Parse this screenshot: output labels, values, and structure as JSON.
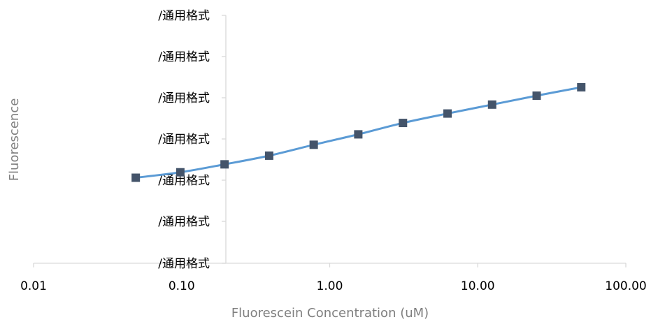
{
  "chart_data": {
    "type": "scatter",
    "title": "",
    "xlabel": "Fluorescein Concentration (uM)",
    "ylabel": "Fluorescence",
    "x_scale": "log",
    "xlim": [
      0.01,
      100
    ],
    "x_tick_labels": [
      "0.01",
      "0.10",
      "1.00",
      "10.00",
      "100.00"
    ],
    "x_tick_values": [
      0.01,
      0.1,
      1,
      10,
      100
    ],
    "y_tick_labels": [
      "/通用格式",
      "/通用格式",
      "/通用格式",
      "/通用格式",
      "/通用格式",
      "/通用格式",
      "/通用格式"
    ],
    "grid": false,
    "legend": "none",
    "series": [
      {
        "x": [
          0.049,
          0.098,
          0.195,
          0.39,
          0.78,
          1.56,
          3.125,
          6.25,
          12.5,
          25,
          50
        ],
        "y_relative": [
          0.345,
          0.367,
          0.399,
          0.434,
          0.478,
          0.52,
          0.566,
          0.604,
          0.64,
          0.676,
          0.71
        ],
        "marker": "square",
        "marker_color": "#44546a",
        "line_color": "#5b9bd5",
        "line": "smooth"
      }
    ]
  }
}
